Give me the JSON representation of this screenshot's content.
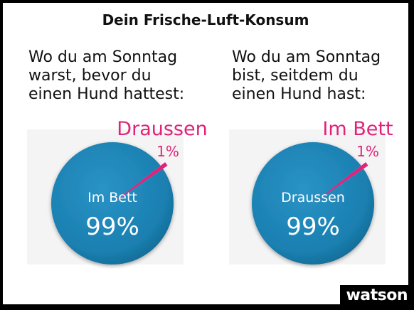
{
  "header": {
    "title": "Dein Frische-Luft-Konsum"
  },
  "panels": [
    {
      "caption_lines": [
        "Wo du am Sonntag",
        "warst, bevor du",
        "einen Hund hattest:"
      ]
    },
    {
      "caption_lines": [
        "Wo du am Sonntag",
        "bist, seitdem du",
        "einen Hund hast:"
      ]
    }
  ],
  "chart_data": [
    {
      "type": "pie",
      "labels": [
        "Im Bett",
        "Draussen"
      ],
      "values": [
        99,
        1
      ],
      "value_labels": [
        "99%",
        "1%"
      ]
    },
    {
      "type": "pie",
      "labels": [
        "Draussen",
        "Im Bett"
      ],
      "values": [
        99,
        1
      ],
      "value_labels": [
        "99%",
        "1%"
      ]
    }
  ],
  "colors": {
    "major_slice": "#1a7fb0",
    "minor_slice": "#e0237a",
    "label_pink": "#e0237a"
  },
  "logo": {
    "text": "watson"
  }
}
